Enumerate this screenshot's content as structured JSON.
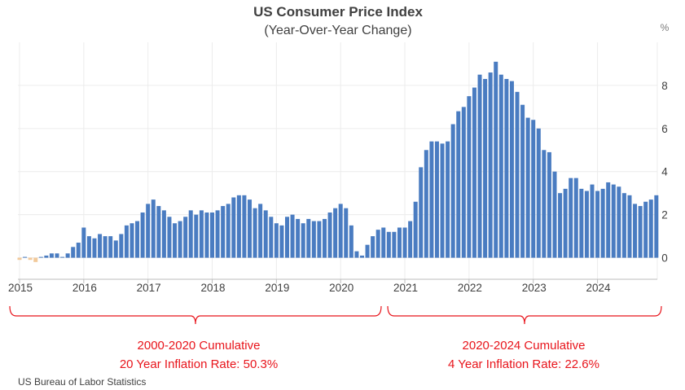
{
  "chart_data": {
    "type": "bar",
    "title": "US Consumer Price Index",
    "subtitle": "(Year-Over-Year Change)",
    "ylabel_unit": "%",
    "ylim": [
      -1.0,
      10.0
    ],
    "yticks": [
      0,
      2,
      4,
      6,
      8
    ],
    "xticks": [
      "2015",
      "2016",
      "2017",
      "2018",
      "2019",
      "2020",
      "2021",
      "2022",
      "2023",
      "2024"
    ],
    "x_start": "2015-01",
    "x_end": "2024-12",
    "positive_color": "#4a7cc1",
    "negative_color": "#f2c99a",
    "grid": true,
    "values": [
      -0.1,
      0.0,
      -0.1,
      -0.2,
      0.0,
      0.1,
      0.2,
      0.2,
      0.0,
      0.2,
      0.5,
      0.7,
      1.4,
      1.0,
      0.9,
      1.1,
      1.0,
      1.0,
      0.8,
      1.1,
      1.5,
      1.6,
      1.7,
      2.1,
      2.5,
      2.7,
      2.4,
      2.2,
      1.9,
      1.6,
      1.7,
      1.9,
      2.2,
      2.0,
      2.2,
      2.1,
      2.1,
      2.2,
      2.4,
      2.5,
      2.8,
      2.9,
      2.9,
      2.7,
      2.3,
      2.5,
      2.2,
      1.9,
      1.6,
      1.5,
      1.9,
      2.0,
      1.8,
      1.6,
      1.8,
      1.7,
      1.7,
      1.8,
      2.1,
      2.3,
      2.5,
      2.3,
      1.5,
      0.3,
      0.1,
      0.6,
      1.0,
      1.3,
      1.4,
      1.2,
      1.2,
      1.4,
      1.4,
      1.7,
      2.6,
      4.2,
      5.0,
      5.4,
      5.4,
      5.3,
      5.4,
      6.2,
      6.8,
      7.0,
      7.5,
      7.9,
      8.5,
      8.3,
      8.6,
      9.1,
      8.5,
      8.3,
      8.2,
      7.7,
      7.1,
      6.5,
      6.4,
      6.0,
      5.0,
      4.9,
      4.0,
      3.0,
      3.2,
      3.7,
      3.7,
      3.2,
      3.1,
      3.4,
      3.1,
      3.2,
      3.5,
      3.4,
      3.3,
      3.0,
      2.9,
      2.5,
      2.4,
      2.6,
      2.7,
      2.9
    ],
    "annotations": [
      {
        "from": "2015-01",
        "to": "2020-12",
        "line1": "2000-2020 Cumulative",
        "line2": "20 Year Inflation Rate: 50.3%"
      },
      {
        "from": "2021-01",
        "to": "2024-12",
        "line1": "2020-2024 Cumulative",
        "line2": "4 Year Inflation Rate: 22.6%"
      }
    ],
    "annotation_color": "#e8141b"
  },
  "source": "US Bureau of Labor Statistics"
}
